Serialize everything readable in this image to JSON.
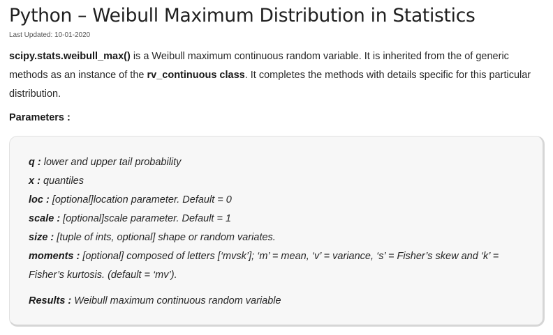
{
  "article": {
    "title": "Python – Weibull Maximum Distribution in Statistics",
    "last_updated": "Last Updated: 10-01-2020"
  },
  "intro": {
    "function_name": "scipy.stats.weibull_max()",
    "text_1": " is a Weibull maximum continuous random variable. It is inherited from the of generic methods as an instance of the ",
    "class_name": "rv_continuous class",
    "text_2": ". It completes the methods with details specific for this particular distribution."
  },
  "parameters": {
    "heading": "Parameters :",
    "items": [
      {
        "name": "q :",
        "desc": " lower and upper tail probability"
      },
      {
        "name": "x :",
        "desc": " quantiles"
      },
      {
        "name": "loc :",
        "desc": " [optional]location parameter. Default = 0"
      },
      {
        "name": "scale :",
        "desc": " [optional]scale parameter. Default = 1"
      },
      {
        "name": "size :",
        "desc": " [tuple of ints, optional] shape or random variates."
      },
      {
        "name": "moments :",
        "desc": " [optional] composed of letters [‘mvsk’]; ‘m’ = mean, ‘v’ = variance, ‘s’ = Fisher’s skew and ‘k’ =",
        "desc_cont": "Fisher’s kurtosis. (default = ‘mv’)."
      }
    ],
    "results": {
      "name": "Results :",
      "desc": " Weibull maximum continuous random variable"
    }
  }
}
